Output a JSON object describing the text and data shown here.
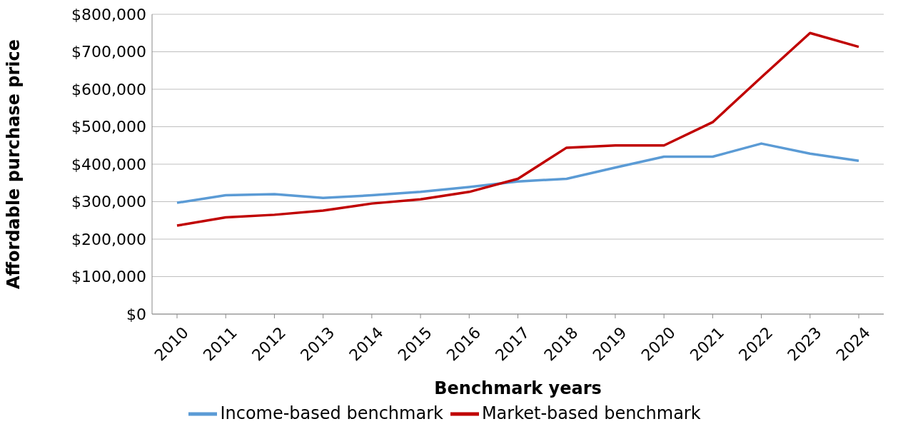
{
  "chart_data": {
    "type": "line",
    "xlabel": "Benchmark years",
    "ylabel": "Affordable purchase price",
    "categories": [
      "2010",
      "2011",
      "2012",
      "2013",
      "2014",
      "2015",
      "2016",
      "2017",
      "2018",
      "2019",
      "2020",
      "2021",
      "2022",
      "2023",
      "2024"
    ],
    "series": [
      {
        "name": "Income-based benchmark",
        "color": "#5b9bd5",
        "values": [
          297000,
          317000,
          320000,
          310000,
          317000,
          326000,
          339000,
          354000,
          361000,
          391000,
          420000,
          420000,
          455000,
          428000,
          409000
        ]
      },
      {
        "name": "Market-based benchmark",
        "color": "#c00000",
        "values": [
          236000,
          258000,
          265000,
          276000,
          295000,
          306000,
          326000,
          361000,
          444000,
          450000,
          450000,
          512000,
          632000,
          750000,
          713000
        ]
      }
    ],
    "ylim": [
      0,
      800000
    ],
    "yticks": [
      {
        "value": 0,
        "label": "$0"
      },
      {
        "value": 100000,
        "label": "$100,000"
      },
      {
        "value": 200000,
        "label": "$200,000"
      },
      {
        "value": 300000,
        "label": "$300,000"
      },
      {
        "value": 400000,
        "label": "$400,000"
      },
      {
        "value": 500000,
        "label": "$500,000"
      },
      {
        "value": 600000,
        "label": "$600,000"
      },
      {
        "value": 700000,
        "label": "$700,000"
      },
      {
        "value": 800000,
        "label": "$800,000"
      }
    ],
    "grid": "y",
    "legend": "bottom",
    "marker": "none",
    "line_style": "solid"
  }
}
